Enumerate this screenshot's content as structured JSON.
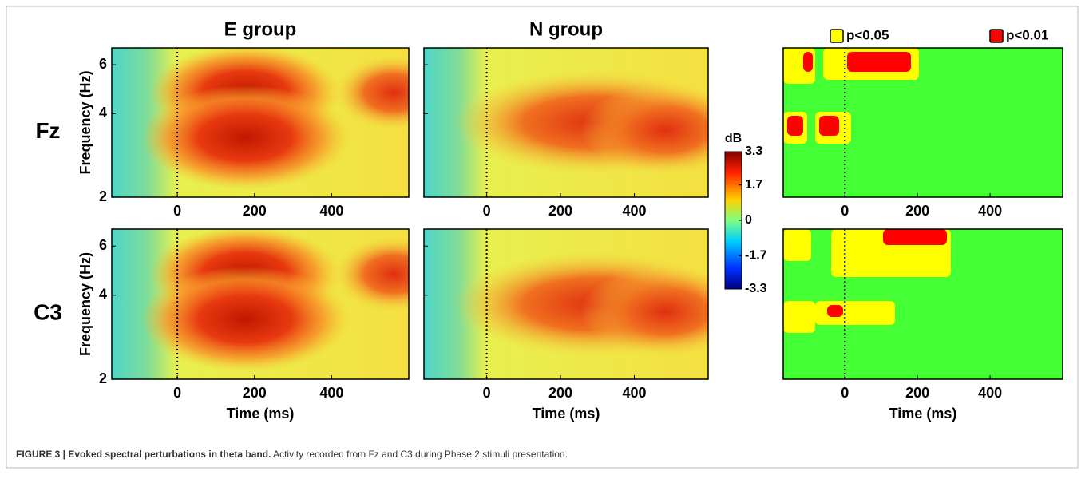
{
  "figure": {
    "columns": [
      "E group",
      "N group"
    ],
    "rows": [
      "Fz",
      "C3"
    ],
    "y_label": "Frequency (Hz)",
    "x_label": "Time (ms)",
    "xlim": [
      -170,
      600
    ],
    "xticks": [
      0,
      200,
      400
    ],
    "ylim": [
      2,
      6.9
    ],
    "yticks": [
      2,
      4,
      6
    ],
    "log_y": true,
    "colorbar": {
      "label": "dB",
      "lim": [
        -3.3,
        3.3
      ],
      "ticks": [
        3.3,
        1.7,
        0,
        -1.7,
        -3.3
      ]
    },
    "legend": [
      {
        "name": "p<0.05",
        "color": "#ffff00"
      },
      {
        "name": "p<0.01",
        "color": "#ff0000"
      }
    ]
  },
  "caption": {
    "label": "FIGURE 3 | Evoked spectral perturbations in theta band.",
    "text": "Activity recorded from Fz and C3 during Phase 2 stimuli presentation."
  }
}
